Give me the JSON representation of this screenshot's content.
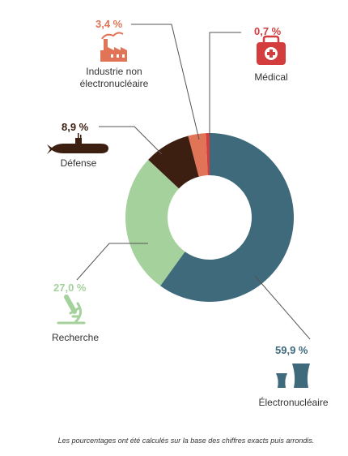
{
  "chart_data": {
    "type": "donut",
    "slices": [
      {
        "label": "Électronucléaire",
        "value": 59.9,
        "value_label": "59,9 %",
        "color": "#3e6a7c",
        "icon": "nuclear-plant-icon"
      },
      {
        "label": "Recherche",
        "value": 27.0,
        "value_label": "27,0 %",
        "color": "#a5d29c",
        "icon": "microscope-icon"
      },
      {
        "label": "Défense",
        "value": 8.9,
        "value_label": "8,9 %",
        "color": "#3d1f12",
        "icon": "submarine-icon"
      },
      {
        "label": "Industrie non électronucléaire",
        "value": 3.4,
        "value_label": "3,4 %",
        "color": "#e17357",
        "icon": "factory-icon"
      },
      {
        "label": "Médical",
        "value": 0.7,
        "value_label": "0,7 %",
        "color": "#d43d3d",
        "icon": "first-aid-kit-icon"
      }
    ]
  },
  "labels": {
    "nuclear": {
      "pct": "59,9 %",
      "name": "Électronucléaire"
    },
    "research": {
      "pct": "27,0 %",
      "name": "Recherche"
    },
    "defense": {
      "pct": "8,9 %",
      "name": "Défense"
    },
    "industry": {
      "pct": "3,4 %",
      "name_line1": "Industrie non",
      "name_line2": "électronucléaire"
    },
    "medical": {
      "pct": "0,7 %",
      "name": "Médical"
    }
  },
  "footnote": "Les pourcentages ont été calculés sur la base des chiffres exacts puis arrondis."
}
